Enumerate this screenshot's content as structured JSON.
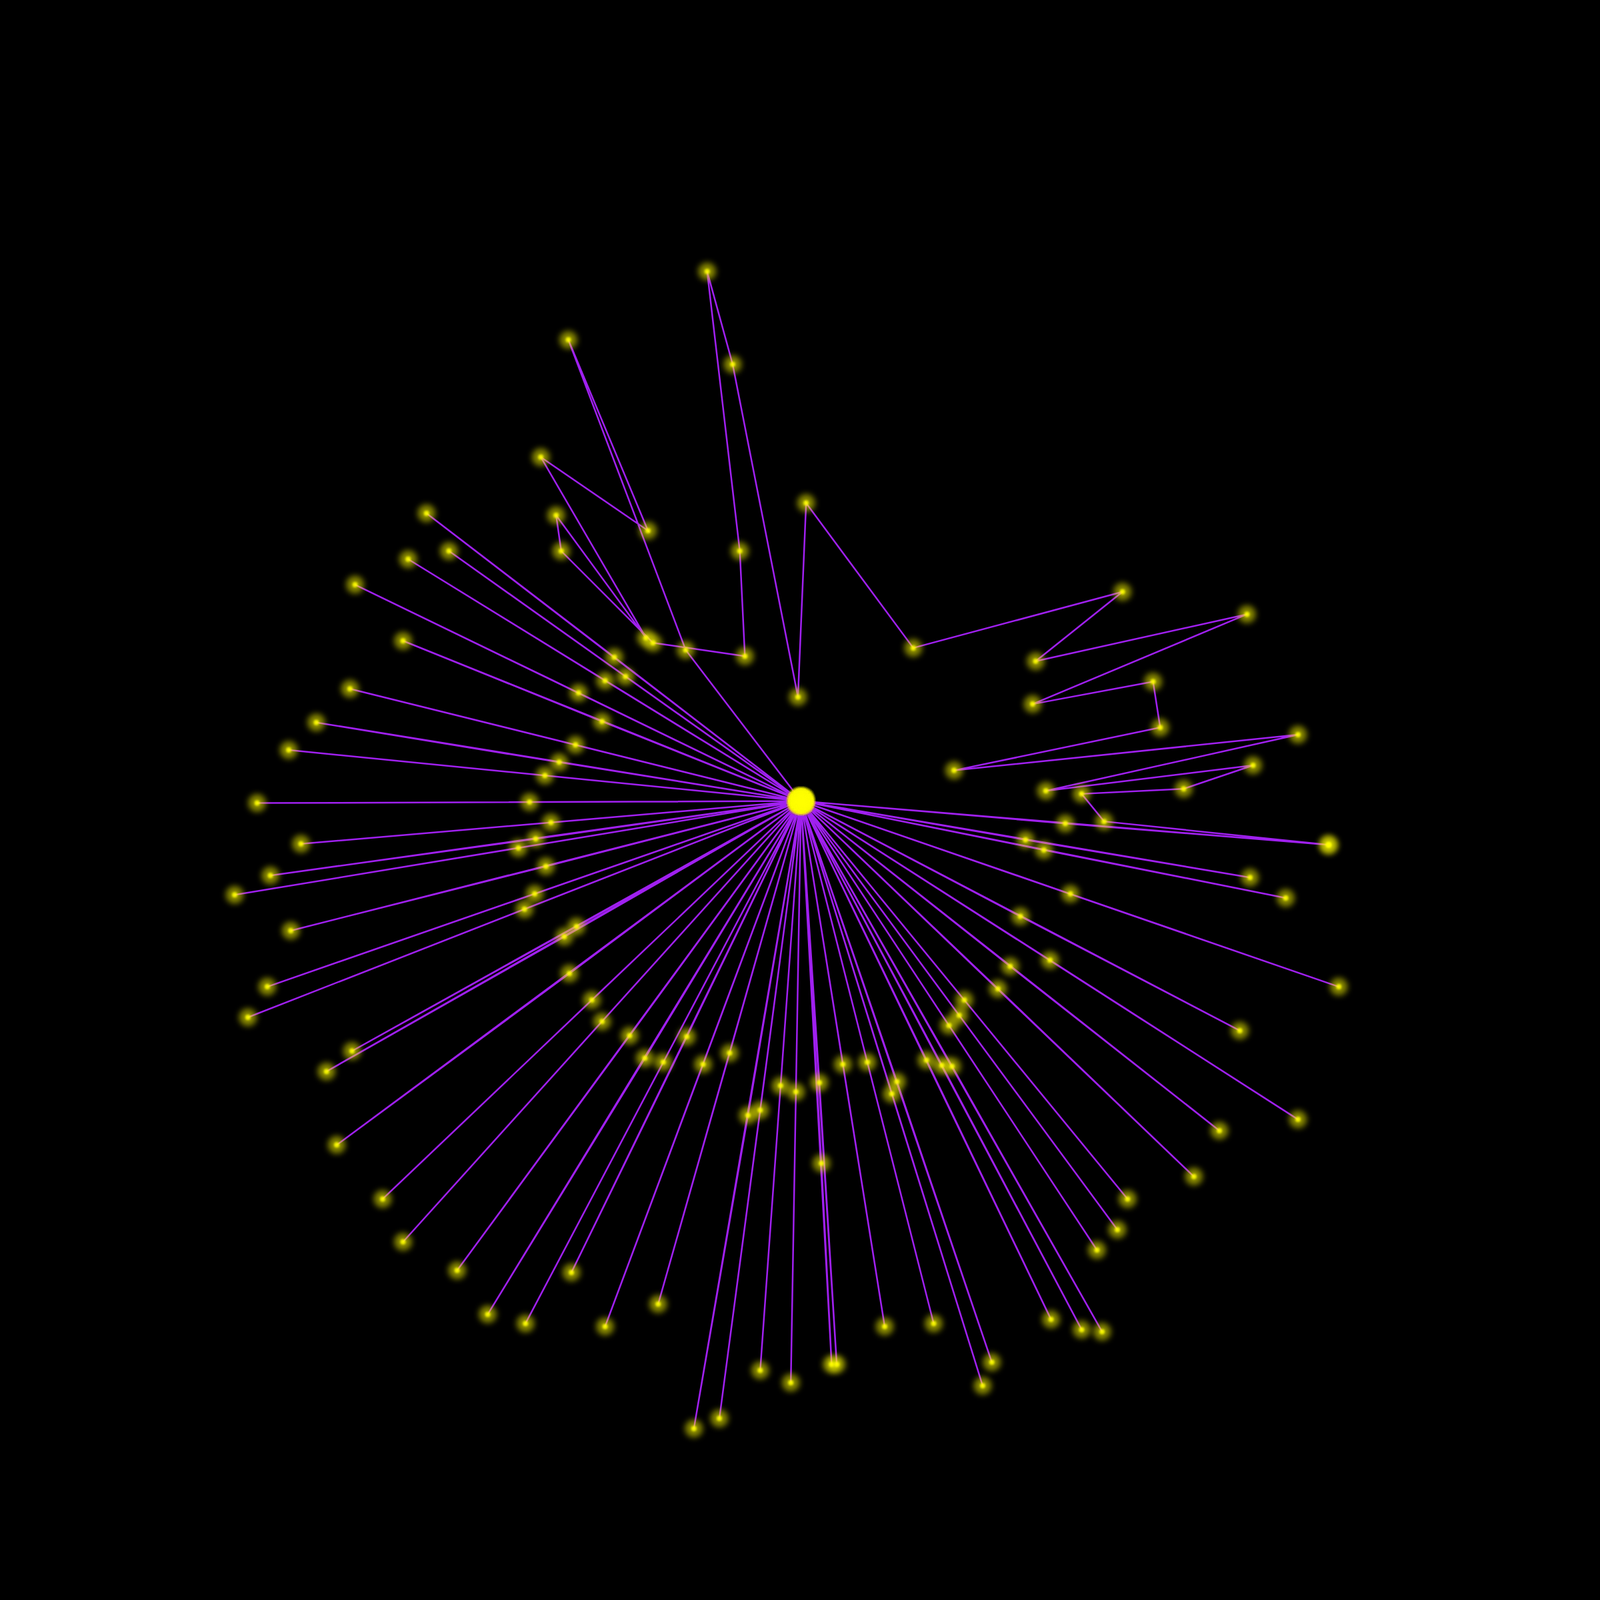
{
  "chart_data": {
    "type": "scatter",
    "xlim": [
      0,
      1568
    ],
    "ylim": [
      1568,
      0
    ],
    "tick_labels": false,
    "grid": false,
    "color": "#a020f0",
    "marker": "circle",
    "line_style": "solid",
    "x": [
      785,
      1302,
      1044,
      785,
      1260,
      1023,
      785,
      1312,
      1049,
      785,
      1225,
      1005,
      785,
      1215,
      1000,
      785,
      1272,
      1029,
      785,
      1195,
      990,
      785,
      1170,
      978,
      785,
      1105,
      945,
      785,
      1095,
      940,
      785,
      1075,
      930,
      785,
      1080,
      933,
      785,
      1060,
      923,
      785,
      1030,
      908,
      785,
      972,
      879,
      785,
      963,
      874,
      785,
      915,
      850,
      785,
      867,
      826,
      785,
      820,
      803,
      785,
      815,
      805,
      785,
      775,
      780,
      785,
      745,
      765,
      785,
      705,
      745,
      785,
      680,
      733,
      785,
      645,
      715,
      785,
      593,
      689,
      785,
      560,
      673,
      785,
      515,
      650,
      785,
      478,
      632,
      785,
      448,
      617,
      785,
      395,
      590,
      785,
      375,
      580,
      785,
      330,
      558,
      785,
      320,
      553,
      785,
      345,
      565,
      785,
      243,
      514,
      785,
      262,
      524,
      785,
      285,
      535,
      785,
      230,
      508,
      785,
      265,
      525,
      785,
      295,
      540,
      785,
      252,
      519,
      785,
      283,
      534,
      785,
      310,
      548,
      785,
      343,
      564,
      785,
      395,
      590,
      785,
      348,
      567,
      785,
      400,
      593,
      785,
      440,
      613,
      785,
      418,
      602,
      785,
      672,
      557,
      635,
      530,
      633,
      545,
      550,
      640,
      730,
      725,
      693,
      718,
      782,
      790,
      895,
      1100,
      1015,
      1222,
      1012,
      1130,
      1137,
      935,
      1272,
      1025,
      1228,
      1160,
      1060,
      1082,
      1302,
      785
    ],
    "values": [
      785,
      828,
      807,
      785,
      880,
      833,
      785,
      967,
      876,
      785,
      860,
      823,
      785,
      1010,
      898,
      785,
      1097,
      941,
      785,
      1108,
      947,
      785,
      1153,
      969,
      785,
      1175,
      980,
      785,
      1205,
      995,
      785,
      1225,
      1005,
      785,
      1305,
      1045,
      785,
      1303,
      1044,
      785,
      1293,
      1039,
      785,
      1335,
      1060,
      785,
      1358,
      1072,
      785,
      1297,
      1041,
      785,
      1300,
      1043,
      785,
      1337,
      1061,
      785,
      1337,
      1140,
      785,
      1355,
      1070,
      785,
      1343,
      1064,
      785,
      1390,
      1088,
      785,
      1400,
      1093,
      785,
      1278,
      1032,
      785,
      1300,
      1043,
      785,
      1247,
      1016,
      785,
      1297,
      1041,
      785,
      1288,
      1037,
      785,
      1245,
      1015,
      785,
      1217,
      1001,
      785,
      1175,
      980,
      785,
      1122,
      954,
      785,
      1050,
      918,
      785,
      1030,
      908,
      785,
      997,
      891,
      785,
      967,
      876,
      785,
      912,
      849,
      785,
      877,
      831,
      785,
      858,
      822,
      785,
      827,
      806,
      785,
      787,
      786,
      785,
      735,
      760,
      785,
      708,
      747,
      785,
      675,
      730,
      785,
      628,
      707,
      785,
      573,
      679,
      785,
      548,
      667,
      785,
      540,
      663,
      785,
      503,
      644,
      785,
      637,
      333,
      520,
      448,
      625,
      505,
      540,
      630,
      643,
      540,
      266,
      357,
      683,
      493,
      635,
      580,
      648,
      602,
      690,
      668,
      713,
      755,
      720,
      775,
      750,
      773,
      778,
      805,
      828,
      785
    ]
  }
}
